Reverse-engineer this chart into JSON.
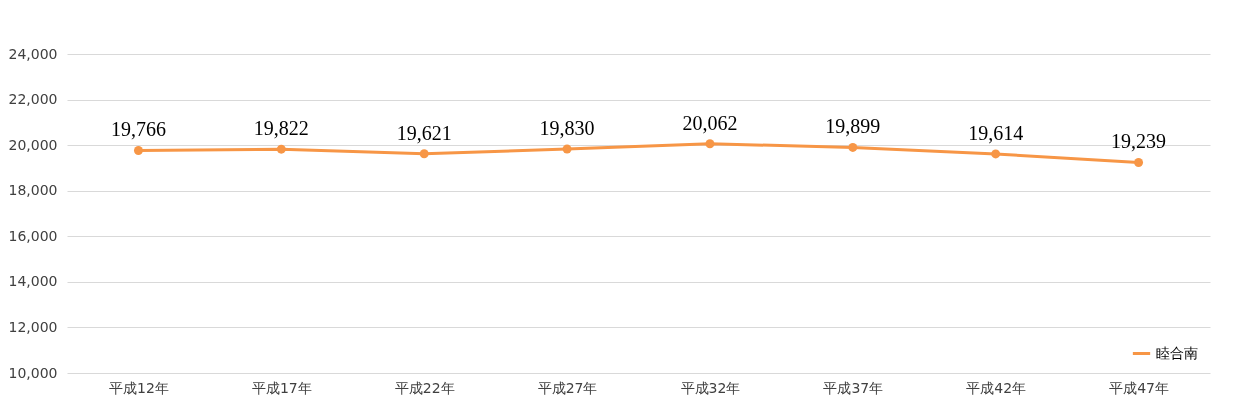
{
  "chart_data": {
    "type": "line",
    "categories": [
      "平成12年",
      "平成17年",
      "平成22年",
      "平成27年",
      "平成32年",
      "平成37年",
      "平成42年",
      "平成47年"
    ],
    "series": [
      {
        "name": "睦合南",
        "color": "#f79646",
        "values": [
          19766,
          19822,
          19621,
          19830,
          20062,
          19899,
          19614,
          19239
        ],
        "value_labels": [
          "19,766",
          "19,822",
          "19,621",
          "19,830",
          "20,062",
          "19,899",
          "19,614",
          "19,239"
        ]
      }
    ],
    "ylim": [
      10000,
      24000
    ],
    "yticks": [
      {
        "value": 10000,
        "label": "10,000"
      },
      {
        "value": 12000,
        "label": "12,000"
      },
      {
        "value": 14000,
        "label": "14,000"
      },
      {
        "value": 16000,
        "label": "16,000"
      },
      {
        "value": 18000,
        "label": "18,000"
      },
      {
        "value": 20000,
        "label": "20,000"
      },
      {
        "value": 22000,
        "label": "22,000"
      },
      {
        "value": 24000,
        "label": "24,000"
      }
    ],
    "grid": "y",
    "legend": "bottom right",
    "marker": "circle"
  }
}
